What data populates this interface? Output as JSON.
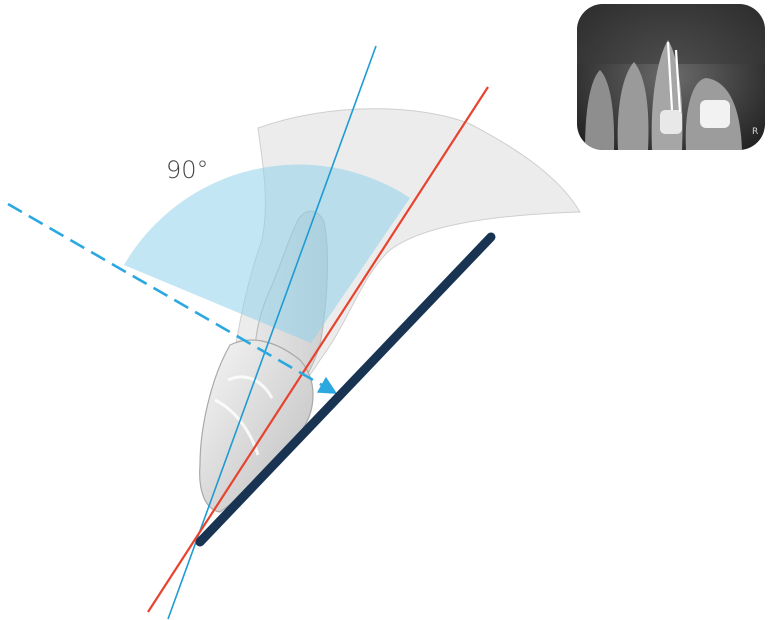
{
  "angle_label": "90°",
  "xray_inset_text": "R",
  "colors": {
    "bisecting_line": "#e8432e",
    "tooth_axis_line": "#1f9bd4",
    "central_ray": "#2aa8df",
    "angle_sector": "#8fd2ea",
    "film_sensor": "#183452",
    "tissue_outline": "#dddddd"
  },
  "icons": {
    "xray_thumbnail": "dental-radiograph-icon",
    "tooth": "tooth-illustration"
  }
}
